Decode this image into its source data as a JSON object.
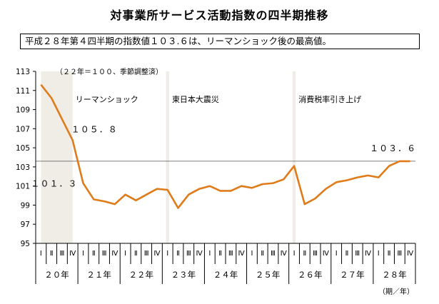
{
  "title": "対事業所サービス活動指数の四半期推移",
  "subtitle": "平成２８年第４四半期の指数値１０３.６は、リーマンショック後の最高値。",
  "chart_data": {
    "type": "line",
    "title": "対事業所サービス活動指数の四半期推移",
    "unit_note": "（２２年＝１００、季節調整済）",
    "x_unit": "（期／年）",
    "ylim": [
      95,
      113
    ],
    "yticks": [
      95,
      97,
      99,
      101,
      103,
      105,
      107,
      109,
      111,
      113
    ],
    "quarter_labels": [
      "Ⅰ",
      "Ⅱ",
      "Ⅲ",
      "Ⅳ"
    ],
    "years": [
      "２０年",
      "２１年",
      "２２年",
      "２３年",
      "２４年",
      "２５年",
      "２６年",
      "２７年",
      "２８年"
    ],
    "values": [
      111.6,
      110.2,
      108.0,
      105.8,
      101.3,
      99.6,
      99.4,
      99.1,
      100.1,
      99.5,
      100.1,
      100.7,
      100.6,
      98.7,
      100.1,
      100.7,
      101.0,
      100.5,
      100.5,
      101.0,
      100.8,
      101.2,
      101.3,
      101.7,
      103.1,
      99.1,
      99.7,
      100.7,
      101.4,
      101.6,
      101.9,
      102.1,
      101.9,
      103.1,
      103.6,
      103.6
    ],
    "reference_value": 103.6,
    "shaded_periods": [
      {
        "label": "リーマンショック",
        "start": 0,
        "end": 3
      },
      {
        "label": "東日本大震災",
        "start": 12,
        "end": 12
      },
      {
        "label": "消費税率引き上げ",
        "start": 24,
        "end": 24
      }
    ],
    "data_labels": [
      {
        "index": 3,
        "text": "１０５．８"
      },
      {
        "index": 4,
        "text": "１０１．３"
      },
      {
        "index": 35,
        "text": "１０３．６"
      }
    ],
    "colors": {
      "line": "#e07b1a",
      "shade": "#f0ede6",
      "reference": "#555555"
    }
  }
}
